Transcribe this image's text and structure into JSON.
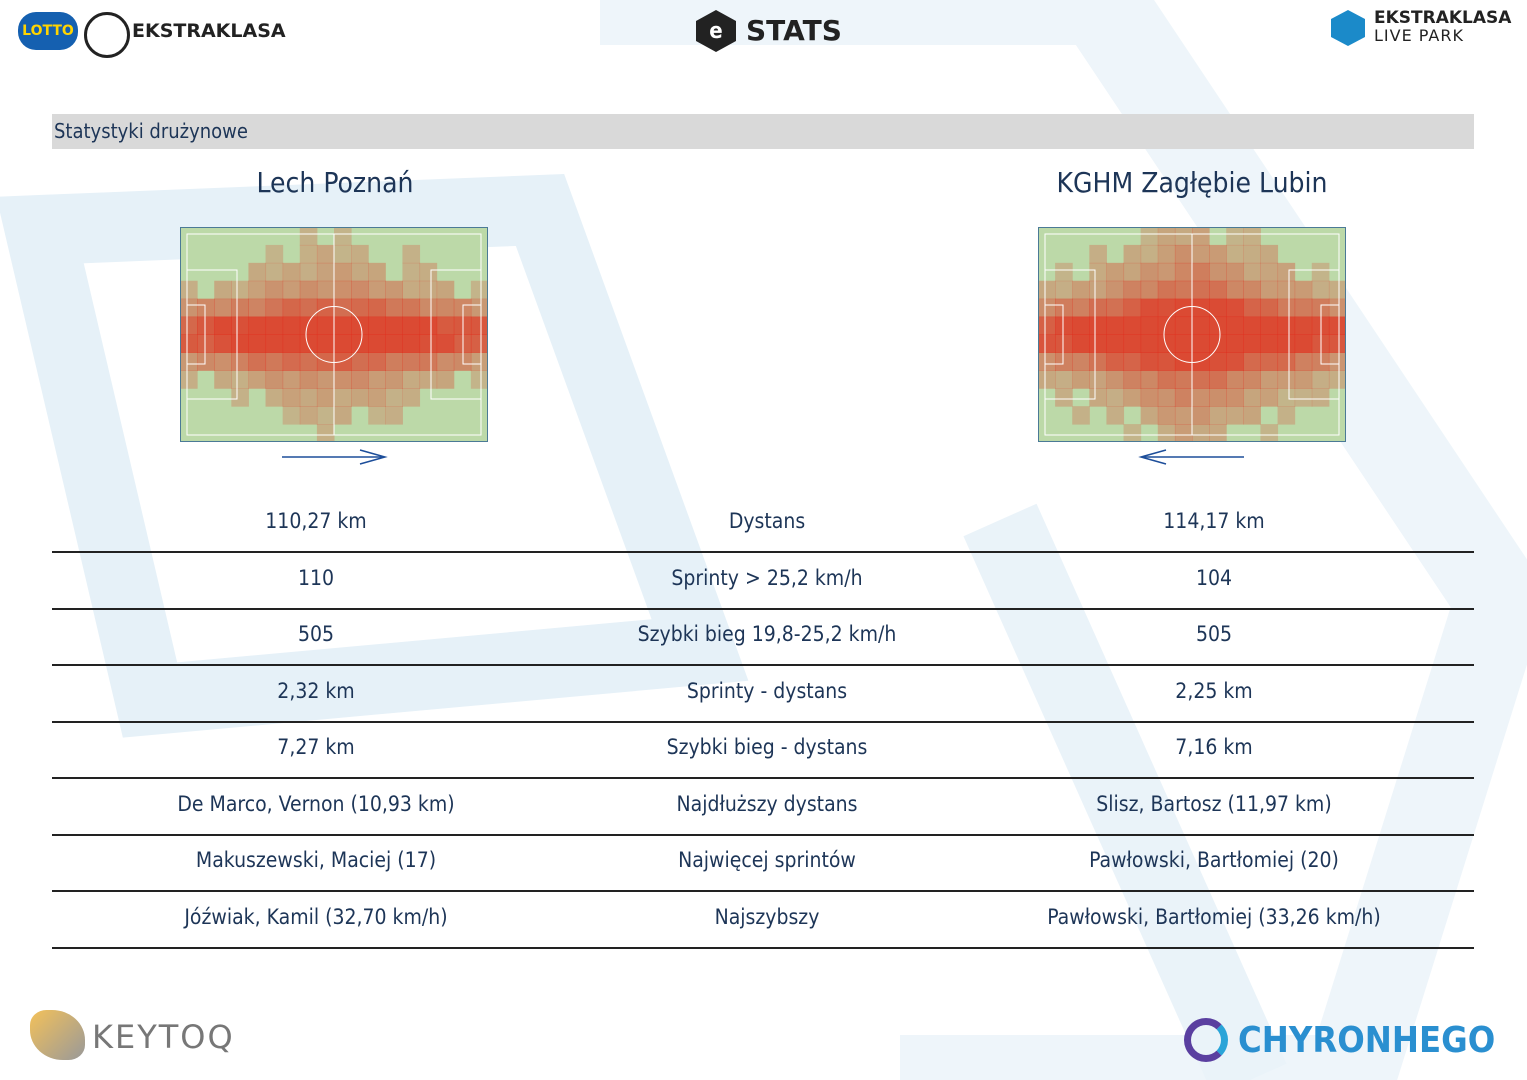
{
  "header": {
    "left_logo": "EKSTRAKLASA",
    "center_logo": "STATS",
    "right_logo_top": "EKSTRAKLASA",
    "right_logo_bottom": "LIVE PARK"
  },
  "section_title": "Statystyki drużynowe",
  "teams": [
    "Lech Poznań",
    "KGHM Zagłębie Lubin"
  ],
  "table": {
    "rows": [
      [
        "110,27 km",
        "Dystans",
        "114,17 km"
      ],
      [
        "110",
        "Sprinty > 25,2 km/h",
        "104"
      ],
      [
        "505",
        "Szybki bieg 19,8-25,2 km/h",
        "505"
      ],
      [
        "2,32 km",
        "Sprinty - dystans",
        "2,25 km"
      ],
      [
        "7,27 km",
        "Szybki bieg - dystans",
        "7,16 km"
      ],
      [
        "De Marco, Vernon (10,93 km)",
        "Najdłuższy dystans",
        "Slisz, Bartosz (11,97 km)"
      ],
      [
        "Makuszewski, Maciej (17)",
        "Najwięcej sprintów",
        "Pawłowski, Bartłomiej (20)"
      ],
      [
        "Jóźwiak, Kamil (32,70 km/h)",
        "Najszybszy",
        "Pawłowski, Bartłomiej (33,26 km/h)"
      ]
    ]
  },
  "footer": {
    "left": "KEYTOQ",
    "right": "CHYRONHEGO"
  }
}
